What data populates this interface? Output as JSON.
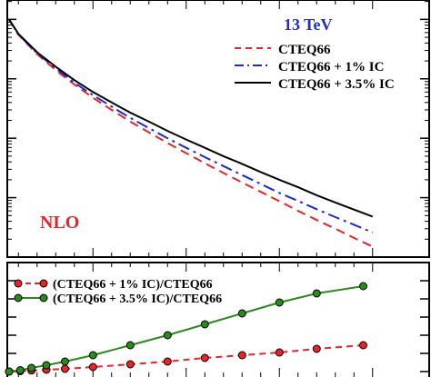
{
  "chart_data": [
    {
      "type": "line",
      "title": "",
      "xlabel": "",
      "ylabel": "",
      "y_scale": "log",
      "grid": false,
      "legend_placement": "top-right",
      "x": [
        0.5,
        1,
        2,
        3,
        4,
        5,
        6,
        7,
        8,
        9,
        10,
        11,
        12,
        13,
        14,
        15,
        16,
        17,
        18,
        19,
        20
      ],
      "series": [
        {
          "name": "CTEQ66",
          "color": "#e8242b",
          "style": "dashed",
          "values": [
            1.0,
            0.55,
            0.26,
            0.14,
            0.08,
            0.048,
            0.03,
            0.019,
            0.0125,
            0.0083,
            0.0056,
            0.0038,
            0.0026,
            0.0018,
            0.00125,
            0.00087,
            0.0006,
            0.00042,
            0.0003,
            0.00021,
            0.00015
          ]
        },
        {
          "name": "CTEQ66 + 1% IC",
          "color": "#1f2bd1",
          "style": "dashdot",
          "values": [
            1.0,
            0.56,
            0.27,
            0.15,
            0.086,
            0.053,
            0.034,
            0.022,
            0.0148,
            0.01,
            0.0069,
            0.0048,
            0.0034,
            0.0024,
            0.0017,
            0.0012,
            0.00088,
            0.00064,
            0.00047,
            0.00035,
            0.00026
          ]
        },
        {
          "name": "CTEQ66 + 3.5% IC",
          "color": "#000000",
          "style": "solid",
          "values": [
            1.0,
            0.57,
            0.28,
            0.16,
            0.095,
            0.06,
            0.04,
            0.027,
            0.019,
            0.0133,
            0.0095,
            0.0069,
            0.005,
            0.0037,
            0.0027,
            0.002,
            0.0015,
            0.0011,
            0.00083,
            0.00063,
            0.00048
          ]
        }
      ],
      "annotations": [
        "13 TeV",
        "NLO"
      ],
      "annotation_colors": [
        "#1f2bd1",
        "#e8242b"
      ]
    },
    {
      "type": "line",
      "title": "",
      "xlabel": "",
      "ylabel": "",
      "grid": false,
      "legend_placement": "top-left",
      "series": [
        {
          "name": "(CTEQ66 + 1% IC)/CTEQ66",
          "color": "#e8242b",
          "marker": "circle",
          "x": [
            0.5,
            1.1,
            1.7,
            2.5,
            3.5,
            5,
            7,
            9,
            11,
            13,
            15,
            17,
            19.5
          ],
          "values": [
            1.0,
            1.005,
            1.012,
            1.02,
            1.03,
            1.05,
            1.08,
            1.11,
            1.15,
            1.18,
            1.21,
            1.25,
            1.29
          ]
        },
        {
          "name": "(CTEQ66 + 3.5% IC)/CTEQ66",
          "color": "#2a8a1a",
          "marker": "circle",
          "x": [
            0.5,
            1.1,
            1.7,
            2.5,
            3.5,
            5,
            7,
            9,
            11,
            13,
            15,
            17,
            19.5
          ],
          "values": [
            1.0,
            1.015,
            1.04,
            1.07,
            1.11,
            1.18,
            1.29,
            1.4,
            1.52,
            1.64,
            1.76,
            1.86,
            1.94
          ]
        }
      ]
    }
  ]
}
